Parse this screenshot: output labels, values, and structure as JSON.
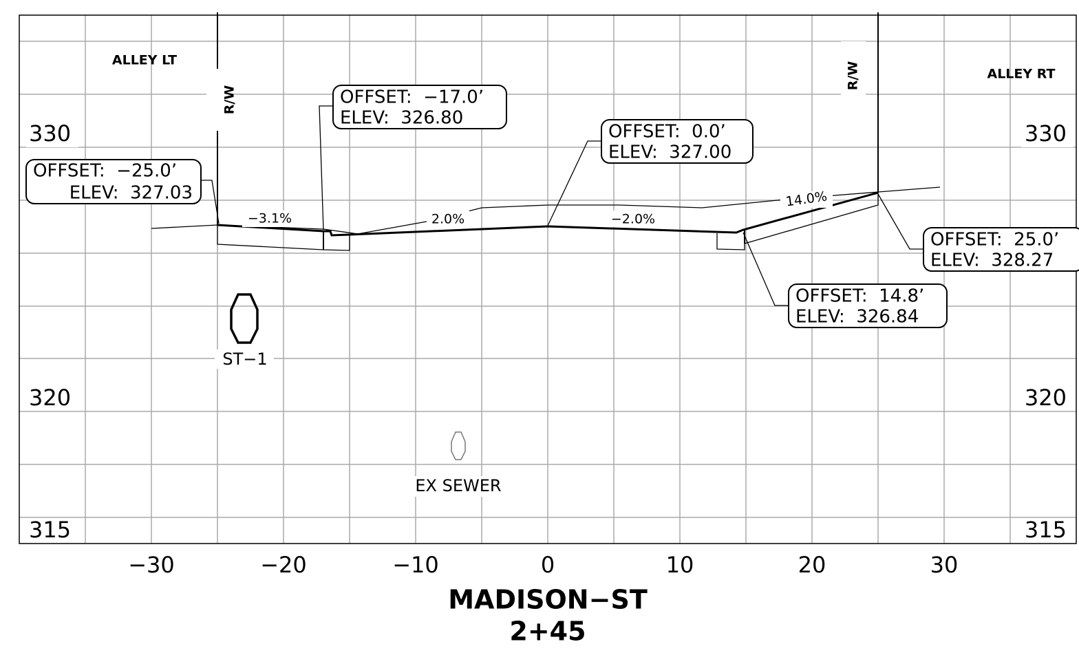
{
  "labels": {
    "alley_left": "ALLEY LT",
    "alley_right": "ALLEY RT",
    "row_left": "R/W",
    "row_right": "R/W"
  },
  "elevation_labels": {
    "left": [
      "330",
      "320",
      "315"
    ],
    "right": [
      "330",
      "320",
      "315"
    ]
  },
  "offset_labels": [
    "−30",
    "−20",
    "−10",
    "0",
    "10",
    "20",
    "30"
  ],
  "callouts": [
    {
      "offset": "OFFSET:  −25.0’",
      "elev": "ELEV:  327.03"
    },
    {
      "offset": "OFFSET:  −17.0’",
      "elev": "ELEV:  326.80"
    },
    {
      "offset": "OFFSET:  0.0’",
      "elev": "ELEV:  327.00"
    },
    {
      "offset": "OFFSET:  14.8’",
      "elev": "ELEV:  326.84"
    },
    {
      "offset": "OFFSET:  25.0’",
      "elev": "ELEV:  328.27"
    }
  ],
  "slopes": [
    "−3.1%",
    "2.0%",
    "−2.0%",
    "14.0%"
  ],
  "utilities": [
    "ST−1",
    "EX SEWER"
  ],
  "title": "MADISON−ST",
  "station": "2+45"
}
